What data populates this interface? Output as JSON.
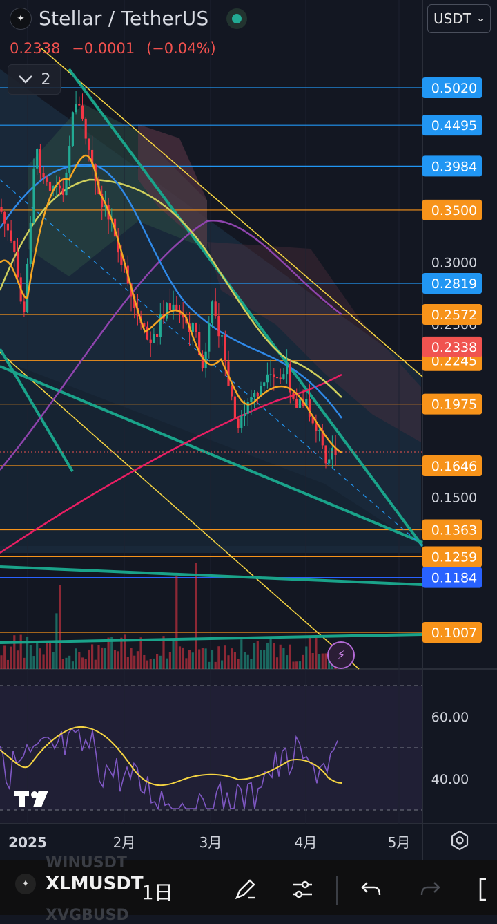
{
  "header": {
    "title": "Stellar / TetherUS",
    "last_price": "0.2338",
    "change": "−0.0001",
    "change_pct": "(−0.04%)",
    "indicators_count": "2",
    "currency": "USDT"
  },
  "price_axis": {
    "plain_labels": [
      "0.3000",
      "0.2500",
      "0.1500"
    ],
    "badges": [
      {
        "label": "0.5020",
        "color": "#2196f3"
      },
      {
        "label": "0.4495",
        "color": "#2196f3"
      },
      {
        "label": "0.3984",
        "color": "#2196f3"
      },
      {
        "label": "0.3500",
        "color": "#f7931a"
      },
      {
        "label": "0.2819",
        "color": "#2196f3"
      },
      {
        "label": "0.2572",
        "color": "#f7931a"
      },
      {
        "label": "0.2245",
        "color": "#f7931a"
      },
      {
        "label": "0.2338",
        "color": "#f05350"
      },
      {
        "label": "0.1975",
        "color": "#f7931a"
      },
      {
        "label": "0.1646",
        "color": "#f7931a"
      },
      {
        "label": "0.1363",
        "color": "#f7931a"
      },
      {
        "label": "0.1184",
        "color": "#2962ff"
      },
      {
        "label": "0.1259",
        "color": "#f7931a"
      },
      {
        "label": "0.1007",
        "color": "#f7931a"
      }
    ]
  },
  "rsi_axis": {
    "labels": [
      "60.00",
      "40.00"
    ]
  },
  "time_axis": {
    "labels": [
      "2025",
      "2月",
      "3月",
      "4月",
      "5月"
    ]
  },
  "toolbar": {
    "symbol": "XLMUSDT",
    "interval": "1日",
    "ghost_above": "WINUSDT",
    "ghost_below": "XVGBUSD"
  },
  "colors": {
    "up": "#22ab94",
    "down": "#f23645",
    "background": "#131722",
    "h_line_blue": "#2196f3",
    "h_line_orange": "#f7931a",
    "ma_fast": "#f5a623",
    "ma_mid": "#2f89e8",
    "ma_slow": "#cfcf5c",
    "ma_200": "#8e44ad",
    "ma_long": "#e91e63",
    "trendline_green": "#1aa38a",
    "trendline_yellow": "#f5d442",
    "rsi": "#7e57c2",
    "rsi_ma": "#f5d442"
  }
}
